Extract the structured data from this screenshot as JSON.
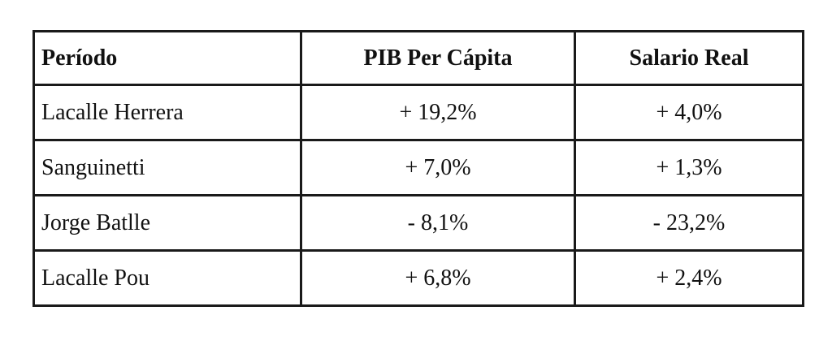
{
  "table": {
    "header": [
      "Período",
      "PIB Per Cápita",
      "Salario Real"
    ],
    "rows": [
      [
        "Lacalle Herrera",
        "+ 19,2%",
        "+ 4,0%"
      ],
      [
        "Sanguinetti",
        "+ 7,0%",
        "+ 1,3%"
      ],
      [
        "Jorge Batlle",
        "- 8,1%",
        "- 23,2%"
      ],
      [
        "Lacalle Pou",
        "+ 6,8%",
        "+ 2,4%"
      ]
    ]
  }
}
